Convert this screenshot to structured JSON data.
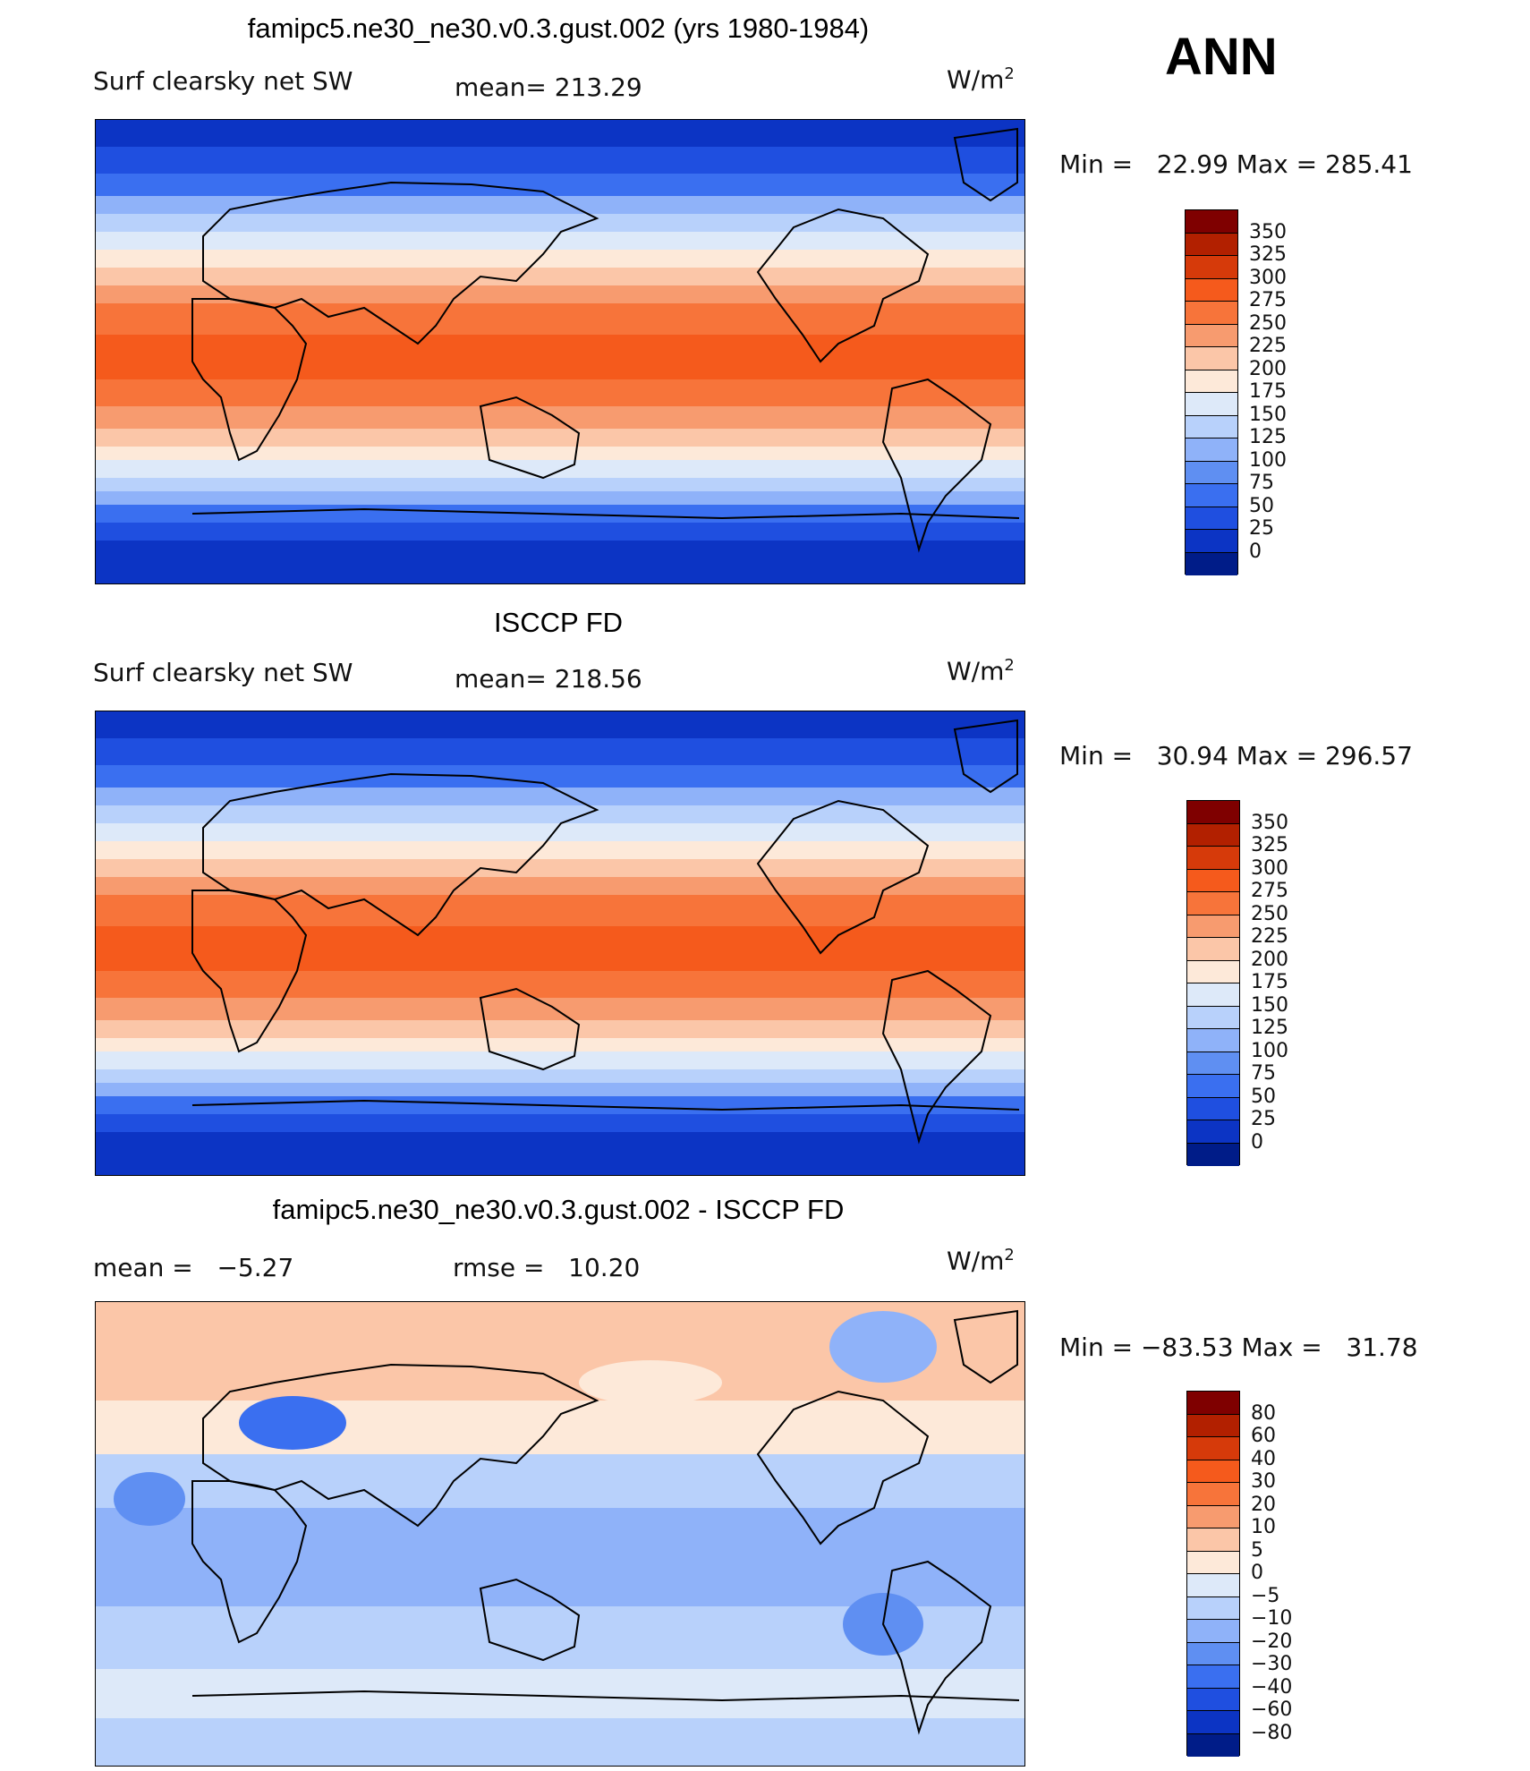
{
  "header": {
    "run_title": "famipc5.ne30_ne30.v0.3.gust.002 (yrs 1980-1984)",
    "season": "ANN"
  },
  "panel1": {
    "variable": "Surf clearsky net SW",
    "mean_text": "mean= 213.29",
    "units": "W/m",
    "units_sup": "2",
    "minmax_text": "Min =   22.99 Max = 285.41",
    "colorbar_labels": [
      "350",
      "325",
      "300",
      "275",
      "250",
      "225",
      "200",
      "175",
      "150",
      "125",
      "100",
      "75",
      "50",
      "25",
      "0"
    ]
  },
  "panel2": {
    "title": "ISCCP FD",
    "variable": "Surf clearsky net SW",
    "mean_text": "mean= 218.56",
    "units": "W/m",
    "units_sup": "2",
    "minmax_text": "Min =   30.94 Max = 296.57",
    "colorbar_labels": [
      "350",
      "325",
      "300",
      "275",
      "250",
      "225",
      "200",
      "175",
      "150",
      "125",
      "100",
      "75",
      "50",
      "25",
      "0"
    ]
  },
  "panel3": {
    "title": "famipc5.ne30_ne30.v0.3.gust.002 - ISCCP FD",
    "mean_text": "mean =   −5.27",
    "rmse_text": "rmse =   10.20",
    "units": "W/m",
    "units_sup": "2",
    "minmax_text": "Min = −83.53 Max =   31.78",
    "colorbar_labels": [
      "80",
      "60",
      "40",
      "30",
      "20",
      "10",
      "5",
      "0",
      "−5",
      "−10",
      "−20",
      "−30",
      "−40",
      "−60",
      "−80"
    ]
  },
  "colors": {
    "abs_scale": [
      "#7f0000",
      "#b22000",
      "#d63a0a",
      "#f55a1c",
      "#f7743a",
      "#f79b6f",
      "#fbc6a8",
      "#fde9d9",
      "#dde9f9",
      "#b8d1fb",
      "#8fb2f9",
      "#5f8ff2",
      "#3a6ff0",
      "#1f4fe0",
      "#0c34c4",
      "#001c88"
    ],
    "diff_scale": [
      "#7f0000",
      "#b22000",
      "#d63a0a",
      "#f55a1c",
      "#f7743a",
      "#f79b6f",
      "#fbc6a8",
      "#fde9d9",
      "#dde9f9",
      "#b8d1fb",
      "#8fb2f9",
      "#5f8ff2",
      "#3a6ff0",
      "#1f4fe0",
      "#0c34c4",
      "#001c88"
    ]
  }
}
